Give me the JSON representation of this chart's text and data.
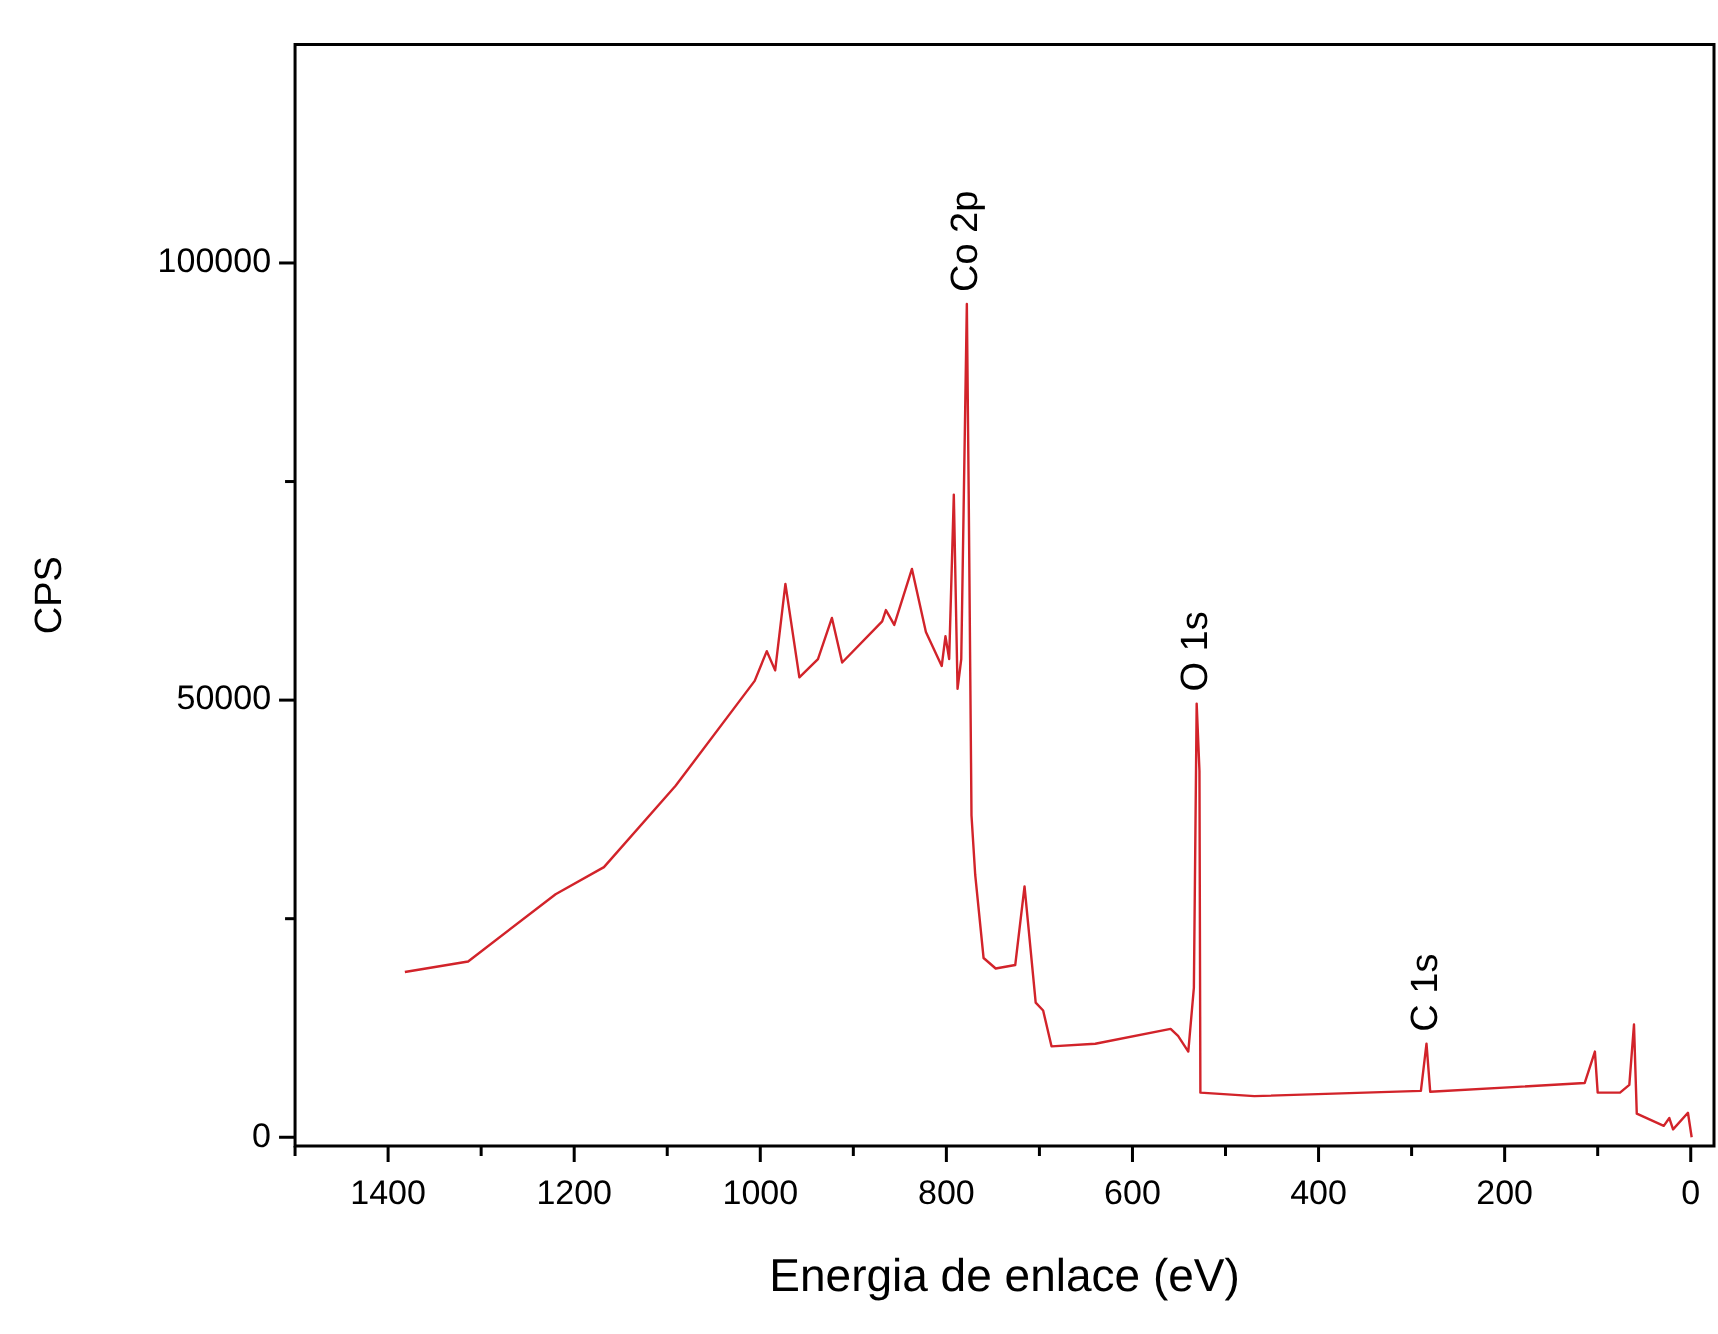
{
  "chart_data": {
    "type": "line",
    "xlabel": "Energia de enlace (eV)",
    "ylabel": "CPS",
    "xlim": [
      1500,
      -25
    ],
    "xticks": [
      1400,
      1200,
      1000,
      800,
      600,
      400,
      200,
      0,
      {
        "value": 1500,
        "label": null
      },
      {
        "value": 1300,
        "label": null
      },
      {
        "value": 1100,
        "label": null
      },
      {
        "value": 900,
        "label": null
      },
      {
        "value": 700,
        "label": null
      },
      {
        "value": 500,
        "label": null
      },
      {
        "value": 300,
        "label": null
      },
      {
        "value": 100,
        "label": null
      }
    ],
    "ylim": [
      -1000,
      125000
    ],
    "yticks": [
      0,
      50000,
      100000,
      {
        "value": 25000,
        "label": null
      },
      {
        "value": 75000,
        "label": null
      }
    ],
    "grid": false,
    "legend": false,
    "marker": "none",
    "line_style": "solid",
    "annotations": [
      {
        "text": "Co 2p",
        "x": 778,
        "y": 95300
      },
      {
        "text": "O 1s",
        "x": 531,
        "y": 49600
      },
      {
        "text": "C 1s",
        "x": 284,
        "y": 10700
      }
    ],
    "series": [
      {
        "color": "#d2232a",
        "x": [
          1382,
          1314,
          1220,
          1168,
          1091,
          1006,
          993,
          984,
          973,
          958,
          938,
          923,
          912,
          869,
          865,
          856,
          837,
          822,
          805,
          801,
          797,
          792,
          788,
          784,
          778,
          776,
          773,
          769,
          760,
          747,
          726,
          716,
          704,
          696,
          687,
          640,
          559,
          551,
          540,
          534,
          531,
          528,
          527,
          469,
          290,
          284,
          280,
          114,
          103,
          100,
          76,
          66,
          61,
          58,
          29,
          23,
          19,
          3,
          -1
        ],
        "values": [
          18900,
          20100,
          27800,
          30900,
          40200,
          52200,
          55600,
          53400,
          63300,
          52600,
          54700,
          59400,
          54300,
          59000,
          60300,
          58600,
          65000,
          57800,
          53900,
          57300,
          54700,
          73500,
          51300,
          54700,
          95300,
          73500,
          36800,
          30000,
          20500,
          19300,
          19700,
          28700,
          15400,
          14500,
          10400,
          10700,
          12400,
          11600,
          9800,
          17100,
          49600,
          41900,
          5100,
          4700,
          5300,
          10700,
          5200,
          6200,
          9800,
          5100,
          5100,
          6000,
          12900,
          2700,
          1300,
          2200,
          900,
          2800,
          0
        ]
      }
    ]
  }
}
